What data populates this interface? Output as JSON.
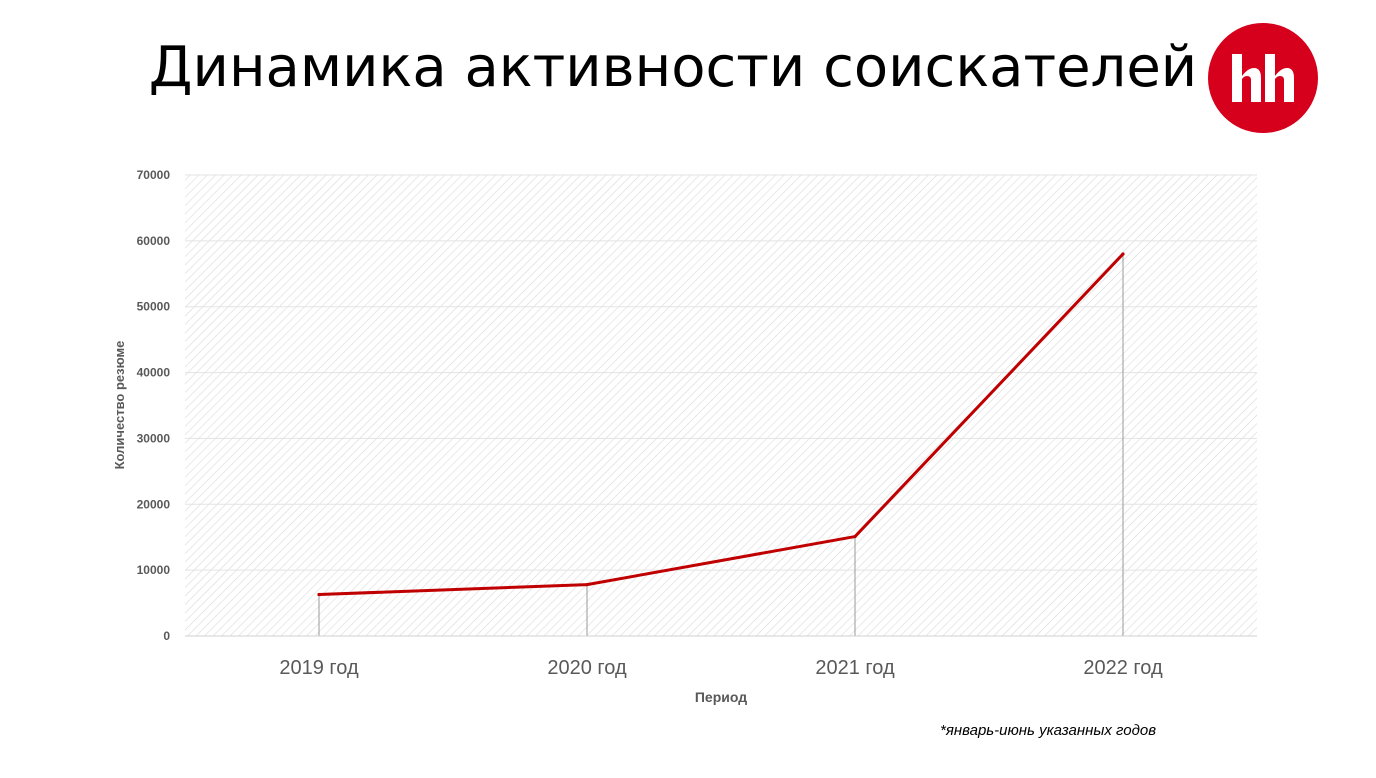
{
  "slide": {
    "title": "Динамика активности соискателей",
    "logo": {
      "text": "hh",
      "color": "#d6001c"
    },
    "footnote": "*январь-июнь указанных годов"
  },
  "chart_data": {
    "type": "line",
    "title": "",
    "xlabel": "Период",
    "ylabel": "Количество резюме",
    "categories": [
      "2019 год",
      "2020 год",
      "2021 год",
      "2022 год"
    ],
    "series": [
      {
        "values": [
          6300,
          7800,
          15100,
          58000
        ],
        "color": "#c00000"
      }
    ],
    "ylim": [
      0,
      70000
    ],
    "yticks": [
      0,
      10000,
      20000,
      30000,
      40000,
      50000,
      60000,
      70000
    ],
    "grid": true,
    "drop_lines": true,
    "legend": "none"
  }
}
